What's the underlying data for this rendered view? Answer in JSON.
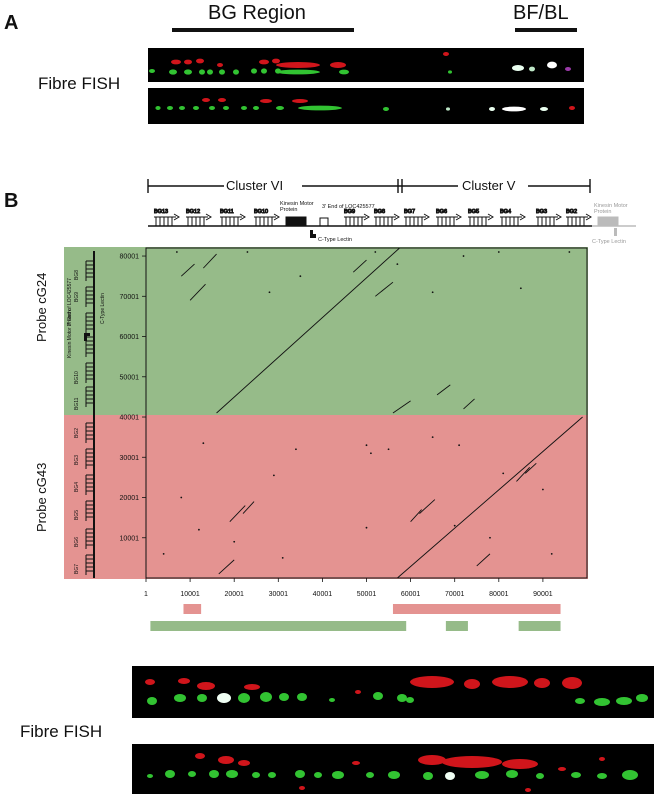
{
  "panel_a": {
    "letter": "A",
    "bg_region_label": "BG Region",
    "bfbl_label": "BF/BL",
    "fish_label": "Fibre FISH"
  },
  "panel_b": {
    "letter": "B",
    "cluster_left": "Cluster VI",
    "cluster_right": "Cluster V",
    "genes_top": [
      "BG13",
      "BG12",
      "BG11",
      "BG10",
      "BG9",
      "BG8",
      "BG7",
      "BG6",
      "BG5",
      "BG4",
      "BG3",
      "BG2"
    ],
    "kinesin_label": "Kinesin Motor",
    "kinesin_sub": "Protein",
    "end_label": "3' End of LOC425577",
    "lectin_label": "C-Type Lectin",
    "probe_top": "Probe cG24",
    "probe_bottom": "Probe cG43",
    "left_genes_top": [
      "BG8",
      "BG9",
      "3' End of LOC425577",
      "Kinesin Motor Protein",
      "BG10",
      "BG11"
    ],
    "left_genes_bottom": [
      "BG2",
      "BG3",
      "BG4",
      "BG5",
      "BG6",
      "BG7"
    ],
    "fish_label": "Fibre FISH"
  },
  "chart_data": {
    "type": "dotplot",
    "x_ticks": [
      "1",
      "10001",
      "20001",
      "30001",
      "40001",
      "50001",
      "60001",
      "70001",
      "80001",
      "90001"
    ],
    "y_ticks": [
      "10001",
      "20001",
      "30001",
      "40001",
      "50001",
      "60001",
      "70001",
      "80001"
    ],
    "probe_regions": [
      {
        "probe": "cG24",
        "color": "#96bb89",
        "y_range": [
          40001,
          82000
        ]
      },
      {
        "probe": "cG43",
        "color": "#e49391",
        "y_range": [
          1,
          40001
        ]
      }
    ],
    "bars_red": [
      [
        8500,
        12500
      ],
      [
        56000,
        94000
      ]
    ],
    "bars_green": [
      [
        1000,
        59000
      ],
      [
        68000,
        73000
      ],
      [
        84500,
        94000
      ]
    ]
  }
}
